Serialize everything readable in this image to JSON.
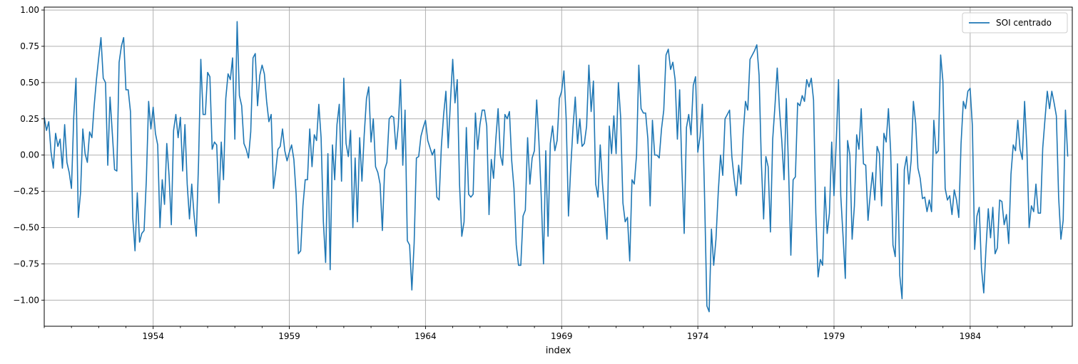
{
  "chart_data": {
    "type": "line",
    "xlabel": "index",
    "ylabel": "",
    "xlim": [
      1950.0,
      1987.75
    ],
    "ylim": [
      -1.18,
      1.02
    ],
    "y_ticks": [
      1.0,
      0.75,
      0.5,
      0.25,
      0.0,
      -0.25,
      -0.5,
      -0.75,
      -1.0
    ],
    "y_tick_labels": [
      "1.00",
      "0.75",
      "0.50",
      "0.25",
      "0.00",
      "−0.25",
      "−0.50",
      "−0.75",
      "−1.00"
    ],
    "x_ticks": [
      1954,
      1959,
      1964,
      1969,
      1974,
      1979,
      1984
    ],
    "x_tick_labels": [
      "1954",
      "1959",
      "1964",
      "1969",
      "1974",
      "1979",
      "1984"
    ],
    "grid": true,
    "legend_position": "top-right",
    "series": [
      {
        "name": "SOI centrado",
        "color": "#1f77b4",
        "x_start": 1950.0,
        "x_step": 0.08333,
        "values": [
          0.26,
          0.17,
          0.23,
          0.02,
          -0.09,
          0.15,
          0.06,
          0.11,
          -0.09,
          0.21,
          -0.05,
          -0.12,
          -0.23,
          0.26,
          0.53,
          -0.43,
          -0.26,
          0.18,
          0.01,
          -0.05,
          0.16,
          0.12,
          0.34,
          0.52,
          0.67,
          0.81,
          0.53,
          0.5,
          -0.07,
          0.4,
          0.15,
          -0.1,
          -0.11,
          0.64,
          0.75,
          0.81,
          0.45,
          0.45,
          0.3,
          -0.43,
          -0.66,
          -0.26,
          -0.6,
          -0.54,
          -0.52,
          -0.17,
          0.37,
          0.18,
          0.33,
          0.15,
          0.07,
          -0.5,
          -0.17,
          -0.34,
          0.08,
          -0.14,
          -0.48,
          0.17,
          0.28,
          0.12,
          0.26,
          -0.11,
          0.21,
          -0.2,
          -0.44,
          -0.2,
          -0.41,
          -0.56,
          -0.05,
          0.66,
          0.28,
          0.28,
          0.57,
          0.54,
          0.04,
          0.09,
          0.07,
          -0.33,
          0.09,
          -0.17,
          0.39,
          0.56,
          0.52,
          0.67,
          0.11,
          0.92,
          0.41,
          0.34,
          0.08,
          0.04,
          -0.02,
          0.16,
          0.67,
          0.7,
          0.34,
          0.55,
          0.62,
          0.56,
          0.37,
          0.23,
          0.28,
          -0.23,
          -0.11,
          0.04,
          0.06,
          0.18,
          0.03,
          -0.04,
          0.02,
          0.07,
          -0.03,
          -0.27,
          -0.68,
          -0.66,
          -0.35,
          -0.17,
          -0.17,
          0.18,
          -0.08,
          0.14,
          0.1,
          0.35,
          0.12,
          -0.46,
          -0.74,
          0.01,
          -0.79,
          0.07,
          -0.17,
          0.21,
          0.35,
          -0.18,
          0.53,
          0.08,
          -0.01,
          0.17,
          -0.5,
          -0.02,
          -0.46,
          0.12,
          -0.18,
          0.14,
          0.39,
          0.47,
          0.09,
          0.25,
          -0.08,
          -0.12,
          -0.2,
          -0.52,
          -0.1,
          -0.05,
          0.25,
          0.27,
          0.26,
          0.04,
          0.2,
          0.52,
          -0.07,
          0.31,
          -0.59,
          -0.62,
          -0.93,
          -0.61,
          -0.02,
          -0.01,
          0.13,
          0.19,
          0.24,
          0.1,
          0.05,
          0.0,
          0.04,
          -0.29,
          -0.31,
          0.06,
          0.28,
          0.44,
          0.05,
          0.37,
          0.66,
          0.36,
          0.52,
          -0.2,
          -0.56,
          -0.46,
          0.19,
          -0.27,
          -0.29,
          -0.27,
          0.29,
          0.04,
          0.21,
          0.31,
          0.31,
          0.2,
          -0.41,
          -0.03,
          -0.16,
          0.11,
          0.32,
          0.0,
          -0.07,
          0.28,
          0.25,
          0.3,
          -0.04,
          -0.23,
          -0.62,
          -0.76,
          -0.76,
          -0.42,
          -0.38,
          0.12,
          -0.2,
          -0.02,
          0.03,
          0.38,
          0.09,
          -0.28,
          -0.75,
          0.03,
          -0.56,
          0.08,
          0.2,
          0.03,
          0.1,
          0.39,
          0.44,
          0.58,
          0.25,
          -0.42,
          -0.09,
          0.19,
          0.4,
          0.08,
          0.25,
          0.06,
          0.08,
          0.2,
          0.62,
          0.3,
          0.51,
          -0.2,
          -0.29,
          0.07,
          -0.2,
          -0.39,
          -0.58,
          0.2,
          0.01,
          0.27,
          0.01,
          0.5,
          0.26,
          -0.33,
          -0.46,
          -0.43,
          -0.73,
          -0.17,
          -0.2,
          0.0,
          0.62,
          0.32,
          0.29,
          0.29,
          0.11,
          -0.35,
          0.24,
          0.0,
          0.0,
          -0.02,
          0.18,
          0.31,
          0.69,
          0.73,
          0.59,
          0.64,
          0.52,
          0.11,
          0.45,
          -0.1,
          -0.54,
          0.19,
          0.28,
          0.14,
          0.48,
          0.54,
          0.02,
          0.13,
          0.35,
          -0.3,
          -1.04,
          -1.08,
          -0.51,
          -0.76,
          -0.58,
          -0.26,
          0.0,
          -0.14,
          0.25,
          0.28,
          0.31,
          -0.01,
          -0.16,
          -0.28,
          -0.07,
          -0.2,
          0.15,
          0.37,
          0.31,
          0.66,
          0.69,
          0.72,
          0.76,
          0.55,
          -0.05,
          -0.44,
          -0.01,
          -0.08,
          -0.53,
          0.11,
          0.34,
          0.6,
          0.31,
          0.1,
          -0.17,
          0.39,
          -0.1,
          -0.69,
          -0.17,
          -0.15,
          0.36,
          0.34,
          0.41,
          0.37,
          0.52,
          0.47,
          0.53,
          0.38,
          -0.4,
          -0.84,
          -0.72,
          -0.76,
          -0.22,
          -0.54,
          -0.4,
          0.09,
          -0.28,
          0.09,
          0.52,
          -0.28,
          -0.56,
          -0.85,
          0.1,
          0.0,
          -0.58,
          -0.35,
          0.14,
          0.04,
          0.32,
          -0.06,
          -0.07,
          -0.45,
          -0.27,
          -0.12,
          -0.31,
          0.06,
          0.01,
          -0.35,
          0.15,
          0.09,
          0.32,
          0.02,
          -0.62,
          -0.7,
          -0.06,
          -0.83,
          -0.99,
          -0.1,
          -0.01,
          -0.2,
          -0.04,
          0.37,
          0.22,
          -0.09,
          -0.16,
          -0.3,
          -0.29,
          -0.39,
          -0.31,
          -0.39,
          0.24,
          0.01,
          0.03,
          0.69,
          0.51,
          -0.23,
          -0.31,
          -0.28,
          -0.41,
          -0.24,
          -0.31,
          -0.43,
          0.08,
          0.37,
          0.32,
          0.44,
          0.46,
          0.2,
          -0.65,
          -0.42,
          -0.36,
          -0.78,
          -0.95,
          -0.64,
          -0.37,
          -0.57,
          -0.36,
          -0.68,
          -0.64,
          -0.31,
          -0.32,
          -0.48,
          -0.41,
          -0.61,
          -0.13,
          0.07,
          0.03,
          0.24,
          0.04,
          -0.03,
          0.37,
          0.05,
          -0.5,
          -0.35,
          -0.39,
          -0.2,
          -0.4,
          -0.4,
          0.05,
          0.25,
          0.44,
          0.32,
          0.44,
          0.36,
          0.27,
          -0.29,
          -0.58,
          -0.45,
          0.31,
          -0.01
        ]
      }
    ]
  }
}
